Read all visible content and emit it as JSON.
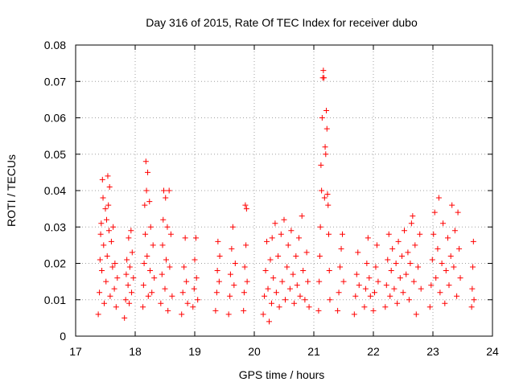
{
  "chart_data": {
    "type": "scatter",
    "title": "Day 316 of 2015, Rate Of TEC Index for receiver dubo",
    "xlabel": "GPS time / hours",
    "ylabel": "ROTI / TECUs",
    "xlim": [
      17,
      24
    ],
    "ylim": [
      0,
      0.08
    ],
    "xticks": [
      "17",
      "18",
      "19",
      "20",
      "21",
      "22",
      "23",
      "24"
    ],
    "yticks": [
      "0",
      "0.01",
      "0.02",
      "0.03",
      "0.04",
      "0.05",
      "0.06",
      "0.07",
      "0.08"
    ],
    "grid": true,
    "marker": "+",
    "color": "#ff0000",
    "series": [
      {
        "name": "ROTI",
        "points": [
          [
            17.38,
            0.006
          ],
          [
            17.4,
            0.012
          ],
          [
            17.41,
            0.021
          ],
          [
            17.42,
            0.028
          ],
          [
            17.43,
            0.031
          ],
          [
            17.44,
            0.018
          ],
          [
            17.45,
            0.043
          ],
          [
            17.46,
            0.038
          ],
          [
            17.47,
            0.025
          ],
          [
            17.48,
            0.009
          ],
          [
            17.5,
            0.035
          ],
          [
            17.51,
            0.015
          ],
          [
            17.52,
            0.032
          ],
          [
            17.53,
            0.022
          ],
          [
            17.54,
            0.044
          ],
          [
            17.55,
            0.036
          ],
          [
            17.56,
            0.029
          ],
          [
            17.57,
            0.041
          ],
          [
            17.58,
            0.011
          ],
          [
            17.6,
            0.026
          ],
          [
            17.62,
            0.019
          ],
          [
            17.63,
            0.03
          ],
          [
            17.65,
            0.013
          ],
          [
            17.66,
            0.02
          ],
          [
            17.68,
            0.008
          ],
          [
            17.7,
            0.016
          ],
          [
            17.82,
            0.005
          ],
          [
            17.84,
            0.01
          ],
          [
            17.85,
            0.017
          ],
          [
            17.86,
            0.021
          ],
          [
            17.88,
            0.014
          ],
          [
            17.89,
            0.027
          ],
          [
            17.9,
            0.009
          ],
          [
            17.91,
            0.019
          ],
          [
            17.93,
            0.029
          ],
          [
            17.94,
            0.012
          ],
          [
            17.95,
            0.023
          ],
          [
            17.97,
            0.016
          ],
          [
            18.13,
            0.008
          ],
          [
            18.14,
            0.014
          ],
          [
            18.15,
            0.02
          ],
          [
            18.16,
            0.036
          ],
          [
            18.17,
            0.028
          ],
          [
            18.18,
            0.048
          ],
          [
            18.19,
            0.04
          ],
          [
            18.2,
            0.022
          ],
          [
            18.21,
            0.045
          ],
          [
            18.22,
            0.011
          ],
          [
            18.24,
            0.037
          ],
          [
            18.25,
            0.018
          ],
          [
            18.26,
            0.03
          ],
          [
            18.28,
            0.012
          ],
          [
            18.3,
            0.025
          ],
          [
            18.32,
            0.016
          ],
          [
            18.43,
            0.009
          ],
          [
            18.45,
            0.017
          ],
          [
            18.46,
            0.025
          ],
          [
            18.47,
            0.032
          ],
          [
            18.48,
            0.04
          ],
          [
            18.5,
            0.013
          ],
          [
            18.51,
            0.038
          ],
          [
            18.52,
            0.021
          ],
          [
            18.54,
            0.03
          ],
          [
            18.55,
            0.007
          ],
          [
            18.57,
            0.04
          ],
          [
            18.58,
            0.019
          ],
          [
            18.6,
            0.028
          ],
          [
            18.62,
            0.011
          ],
          [
            18.78,
            0.006
          ],
          [
            18.8,
            0.012
          ],
          [
            18.82,
            0.019
          ],
          [
            18.84,
            0.027
          ],
          [
            18.86,
            0.015
          ],
          [
            18.88,
            0.009
          ],
          [
            18.97,
            0.008
          ],
          [
            18.99,
            0.013
          ],
          [
            19.0,
            0.021
          ],
          [
            19.02,
            0.027
          ],
          [
            19.03,
            0.016
          ],
          [
            19.05,
            0.01
          ],
          [
            19.35,
            0.007
          ],
          [
            19.37,
            0.012
          ],
          [
            19.38,
            0.018
          ],
          [
            19.39,
            0.026
          ],
          [
            19.41,
            0.015
          ],
          [
            19.42,
            0.022
          ],
          [
            19.57,
            0.006
          ],
          [
            19.59,
            0.011
          ],
          [
            19.6,
            0.017
          ],
          [
            19.62,
            0.024
          ],
          [
            19.64,
            0.03
          ],
          [
            19.66,
            0.014
          ],
          [
            19.68,
            0.02
          ],
          [
            19.82,
            0.007
          ],
          [
            19.83,
            0.012
          ],
          [
            19.84,
            0.019
          ],
          [
            19.85,
            0.036
          ],
          [
            19.86,
            0.025
          ],
          [
            19.87,
            0.035
          ],
          [
            19.88,
            0.015
          ],
          [
            20.15,
            0.006
          ],
          [
            20.17,
            0.011
          ],
          [
            20.19,
            0.018
          ],
          [
            20.21,
            0.026
          ],
          [
            20.23,
            0.013
          ],
          [
            20.25,
            0.004
          ],
          [
            20.27,
            0.021
          ],
          [
            20.29,
            0.009
          ],
          [
            20.3,
            0.027
          ],
          [
            20.32,
            0.016
          ],
          [
            20.35,
            0.031
          ],
          [
            20.37,
            0.012
          ],
          [
            20.4,
            0.022
          ],
          [
            20.42,
            0.008
          ],
          [
            20.45,
            0.028
          ],
          [
            20.47,
            0.015
          ],
          [
            20.5,
            0.032
          ],
          [
            20.52,
            0.01
          ],
          [
            20.55,
            0.019
          ],
          [
            20.57,
            0.025
          ],
          [
            20.6,
            0.013
          ],
          [
            20.62,
            0.029
          ],
          [
            20.65,
            0.017
          ],
          [
            20.67,
            0.009
          ],
          [
            20.7,
            0.022
          ],
          [
            20.72,
            0.014
          ],
          [
            20.75,
            0.027
          ],
          [
            20.77,
            0.011
          ],
          [
            20.8,
            0.033
          ],
          [
            20.82,
            0.018
          ],
          [
            20.85,
            0.01
          ],
          [
            20.88,
            0.023
          ],
          [
            20.9,
            0.015
          ],
          [
            20.92,
            0.008
          ],
          [
            21.08,
            0.007
          ],
          [
            21.09,
            0.015
          ],
          [
            21.1,
            0.022
          ],
          [
            21.11,
            0.03
          ],
          [
            21.12,
            0.047
          ],
          [
            21.13,
            0.04
          ],
          [
            21.14,
            0.06
          ],
          [
            21.15,
            0.071
          ],
          [
            21.16,
            0.073
          ],
          [
            21.17,
            0.071
          ],
          [
            21.18,
            0.038
          ],
          [
            21.19,
            0.052
          ],
          [
            21.2,
            0.05
          ],
          [
            21.21,
            0.062
          ],
          [
            21.22,
            0.057
          ],
          [
            21.23,
            0.039
          ],
          [
            21.24,
            0.036
          ],
          [
            21.25,
            0.028
          ],
          [
            21.26,
            0.018
          ],
          [
            21.27,
            0.01
          ],
          [
            21.4,
            0.007
          ],
          [
            21.42,
            0.012
          ],
          [
            21.44,
            0.019
          ],
          [
            21.46,
            0.024
          ],
          [
            21.48,
            0.028
          ],
          [
            21.5,
            0.015
          ],
          [
            21.68,
            0.006
          ],
          [
            21.7,
            0.011
          ],
          [
            21.72,
            0.017
          ],
          [
            21.74,
            0.023
          ],
          [
            21.76,
            0.014
          ],
          [
            21.85,
            0.008
          ],
          [
            21.87,
            0.013
          ],
          [
            21.89,
            0.02
          ],
          [
            21.91,
            0.027
          ],
          [
            21.93,
            0.016
          ],
          [
            21.95,
            0.011
          ],
          [
            22.0,
            0.007
          ],
          [
            22.02,
            0.012
          ],
          [
            22.04,
            0.019
          ],
          [
            22.06,
            0.025
          ],
          [
            22.08,
            0.015
          ],
          [
            22.2,
            0.008
          ],
          [
            22.22,
            0.014
          ],
          [
            22.24,
            0.021
          ],
          [
            22.26,
            0.028
          ],
          [
            22.28,
            0.011
          ],
          [
            22.3,
            0.018
          ],
          [
            22.32,
            0.024
          ],
          [
            22.35,
            0.013
          ],
          [
            22.38,
            0.02
          ],
          [
            22.4,
            0.009
          ],
          [
            22.42,
            0.026
          ],
          [
            22.45,
            0.016
          ],
          [
            22.48,
            0.022
          ],
          [
            22.5,
            0.012
          ],
          [
            22.52,
            0.029
          ],
          [
            22.55,
            0.017
          ],
          [
            22.58,
            0.023
          ],
          [
            22.6,
            0.01
          ],
          [
            22.62,
            0.02
          ],
          [
            22.64,
            0.031
          ],
          [
            22.66,
            0.033
          ],
          [
            22.68,
            0.015
          ],
          [
            22.7,
            0.025
          ],
          [
            22.72,
            0.006
          ],
          [
            22.75,
            0.019
          ],
          [
            22.78,
            0.028
          ],
          [
            22.8,
            0.013
          ],
          [
            22.95,
            0.008
          ],
          [
            22.97,
            0.014
          ],
          [
            22.99,
            0.021
          ],
          [
            23.01,
            0.028
          ],
          [
            23.03,
            0.034
          ],
          [
            23.05,
            0.016
          ],
          [
            23.08,
            0.024
          ],
          [
            23.1,
            0.038
          ],
          [
            23.12,
            0.012
          ],
          [
            23.15,
            0.02
          ],
          [
            23.17,
            0.031
          ],
          [
            23.2,
            0.009
          ],
          [
            23.22,
            0.018
          ],
          [
            23.25,
            0.027
          ],
          [
            23.27,
            0.014
          ],
          [
            23.3,
            0.022
          ],
          [
            23.32,
            0.036
          ],
          [
            23.35,
            0.019
          ],
          [
            23.37,
            0.029
          ],
          [
            23.4,
            0.011
          ],
          [
            23.42,
            0.034
          ],
          [
            23.44,
            0.024
          ],
          [
            23.46,
            0.016
          ],
          [
            23.65,
            0.008
          ],
          [
            23.66,
            0.013
          ],
          [
            23.67,
            0.019
          ],
          [
            23.68,
            0.026
          ],
          [
            23.69,
            0.01
          ]
        ]
      }
    ]
  }
}
